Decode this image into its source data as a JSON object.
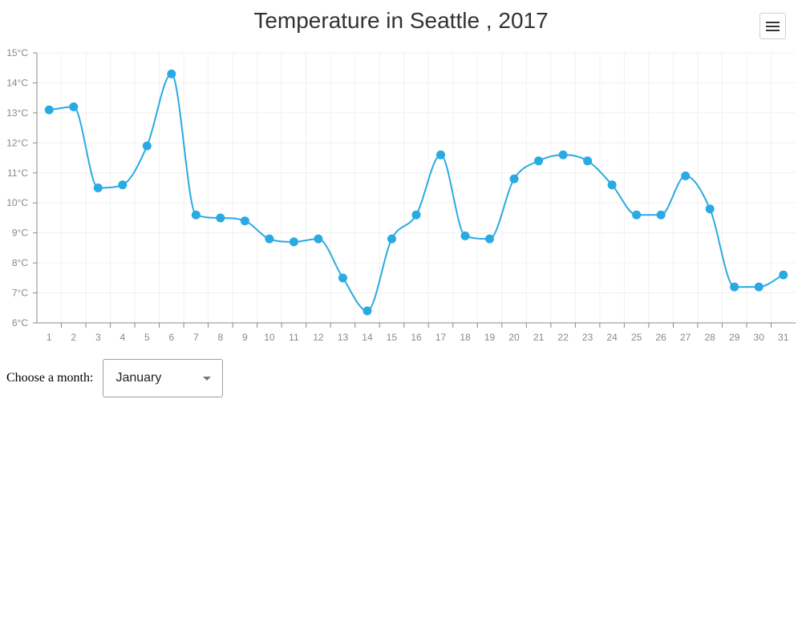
{
  "chart_data": {
    "type": "line",
    "title": "Temperature in Seattle , 2017",
    "xlabel": "",
    "ylabel": "",
    "x": [
      1,
      2,
      3,
      4,
      5,
      6,
      7,
      8,
      9,
      10,
      11,
      12,
      13,
      14,
      15,
      16,
      17,
      18,
      19,
      20,
      21,
      22,
      23,
      24,
      25,
      26,
      27,
      28,
      29,
      30,
      31
    ],
    "values": [
      13.1,
      13.2,
      10.5,
      10.6,
      11.9,
      14.3,
      9.6,
      9.5,
      9.4,
      8.8,
      8.7,
      8.8,
      7.5,
      6.4,
      8.8,
      9.6,
      11.6,
      8.9,
      8.8,
      10.8,
      11.4,
      11.6,
      11.4,
      10.6,
      9.6,
      9.6,
      10.9,
      9.8,
      7.2,
      7.2,
      7.6
    ],
    "ylim": [
      6,
      15
    ],
    "y_ticks": [
      6,
      7,
      8,
      9,
      10,
      11,
      12,
      13,
      14,
      15
    ],
    "y_unit": "°C",
    "curve": "smooth",
    "grid": true,
    "legend": "none",
    "color": "#29aae2"
  },
  "menu": {
    "icon": "hamburger-menu-icon"
  },
  "controls": {
    "month_label": "Choose a month:",
    "month_value": "January"
  }
}
